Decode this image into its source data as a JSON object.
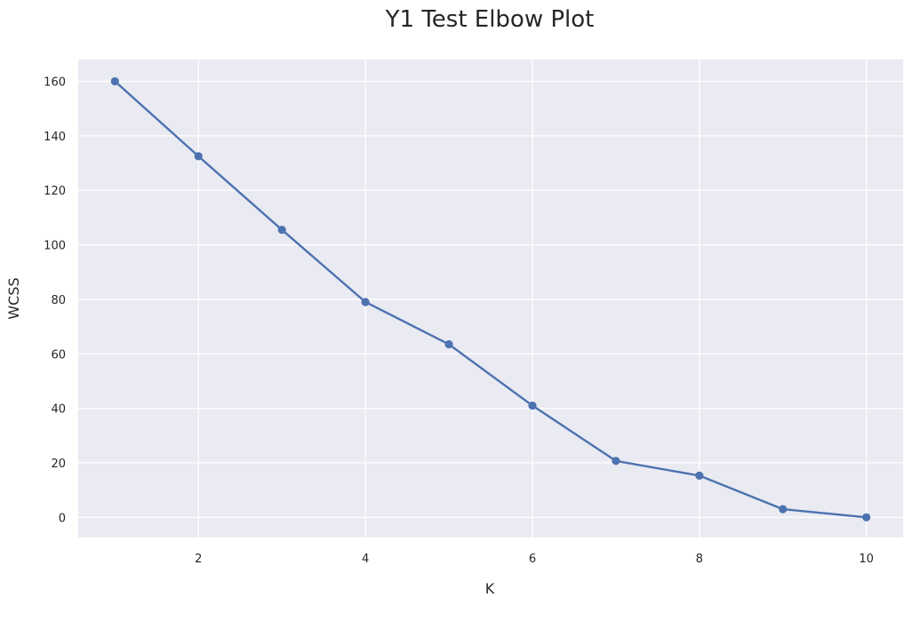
{
  "chart_data": {
    "type": "line",
    "title": "Y1 Test Elbow Plot",
    "xlabel": "K",
    "ylabel": "WCSS",
    "x": [
      1,
      2,
      3,
      4,
      5,
      6,
      7,
      8,
      9,
      10
    ],
    "series": [
      {
        "values": [
          160,
          132.5,
          105.5,
          79,
          63.5,
          41,
          20.7,
          15.3,
          3,
          0
        ],
        "color": "#4c72b0",
        "marker": "circle"
      }
    ],
    "xticks": [
      2,
      4,
      6,
      8,
      10
    ],
    "yticks": [
      0,
      20,
      40,
      60,
      80,
      100,
      120,
      140,
      160
    ],
    "xlim": [
      0.56,
      10.44
    ],
    "ylim": [
      -7.4,
      168
    ],
    "grid": true,
    "legend": "none",
    "background_color": "#eaeaf2",
    "grid_color": "#ffffff"
  }
}
